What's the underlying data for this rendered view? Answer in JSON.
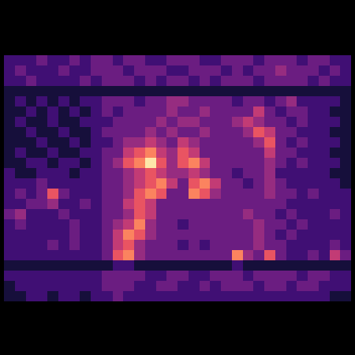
{
  "chart_data": {
    "type": "heatmap",
    "tick_labels": false,
    "cells": [
      [
        2,
        2,
        2,
        3,
        2,
        2,
        3,
        2,
        3,
        3,
        2,
        3,
        3,
        2,
        2,
        3,
        3,
        3,
        2,
        2,
        3,
        3,
        3,
        2,
        3,
        3,
        3,
        2,
        3,
        3,
        2,
        2
      ],
      [
        2,
        3,
        2,
        2,
        2,
        3,
        2,
        2,
        3,
        3,
        3,
        2,
        3,
        3,
        3,
        2,
        2,
        3,
        3,
        3,
        2,
        3,
        2,
        3,
        3,
        4,
        3,
        3,
        3,
        2,
        3,
        2
      ],
      [
        2,
        2,
        3,
        2,
        2,
        2,
        2,
        3,
        2,
        3,
        3,
        3,
        2,
        3,
        2,
        3,
        3,
        2,
        3,
        2,
        3,
        3,
        3,
        2,
        3,
        3,
        3,
        3,
        2,
        3,
        2,
        2
      ],
      [
        1,
        1,
        1,
        1,
        1,
        1,
        1,
        1,
        1,
        1,
        1,
        1,
        1,
        1,
        1,
        1,
        1,
        1,
        1,
        1,
        1,
        1,
        1,
        1,
        1,
        1,
        1,
        1,
        1,
        1,
        1,
        1
      ],
      [
        1,
        2,
        1,
        2,
        1,
        2,
        1,
        2,
        2,
        3,
        3,
        3,
        2,
        3,
        3,
        4,
        4,
        3,
        3,
        3,
        3,
        2,
        3,
        3,
        2,
        3,
        4,
        2,
        2,
        2,
        2,
        1
      ],
      [
        1,
        1,
        2,
        1,
        2,
        1,
        2,
        1,
        2,
        3,
        2,
        3,
        3,
        3,
        3,
        4,
        3,
        3,
        4,
        3,
        3,
        3,
        3,
        5,
        3,
        2,
        3,
        3,
        2,
        2,
        1,
        1
      ],
      [
        1,
        2,
        1,
        1,
        2,
        1,
        1,
        2,
        2,
        2,
        3,
        3,
        3,
        3,
        4,
        3,
        4,
        4,
        3,
        3,
        3,
        4,
        5,
        4,
        3,
        3,
        2,
        3,
        2,
        2,
        2,
        1
      ],
      [
        1,
        1,
        2,
        1,
        1,
        2,
        1,
        1,
        2,
        3,
        3,
        3,
        3,
        4,
        3,
        4,
        3,
        3,
        4,
        3,
        3,
        3,
        4,
        6,
        5,
        3,
        3,
        2,
        2,
        2,
        1,
        1
      ],
      [
        1,
        1,
        1,
        2,
        1,
        1,
        2,
        1,
        2,
        2,
        3,
        4,
        4,
        5,
        4,
        3,
        5,
        4,
        3,
        3,
        3,
        3,
        3,
        4,
        6,
        3,
        2,
        3,
        2,
        2,
        2,
        1
      ],
      [
        1,
        2,
        1,
        1,
        2,
        1,
        1,
        2,
        2,
        3,
        3,
        5,
        6,
        7,
        5,
        4,
        6,
        5,
        3,
        3,
        3,
        3,
        3,
        3,
        5,
        3,
        3,
        2,
        2,
        2,
        1,
        1
      ],
      [
        1,
        1,
        2,
        2,
        1,
        2,
        2,
        1,
        2,
        3,
        4,
        6,
        7,
        9,
        6,
        4,
        6,
        7,
        5,
        3,
        3,
        3,
        3,
        3,
        4,
        3,
        2,
        3,
        2,
        2,
        2,
        1
      ],
      [
        2,
        1,
        1,
        2,
        2,
        2,
        1,
        2,
        2,
        3,
        3,
        4,
        5,
        6,
        5,
        4,
        4,
        5,
        4,
        3,
        3,
        2,
        3,
        3,
        4,
        2,
        2,
        2,
        2,
        2,
        1,
        1
      ],
      [
        2,
        2,
        2,
        3,
        2,
        2,
        2,
        2,
        2,
        3,
        3,
        4,
        5,
        6,
        7,
        5,
        3,
        6,
        7,
        5,
        3,
        3,
        2,
        3,
        4,
        3,
        2,
        2,
        2,
        2,
        2,
        1
      ],
      [
        2,
        3,
        2,
        3,
        6,
        3,
        2,
        2,
        2,
        3,
        3,
        4,
        6,
        7,
        6,
        3,
        3,
        7,
        6,
        4,
        3,
        3,
        3,
        3,
        4,
        3,
        3,
        2,
        3,
        2,
        2,
        2
      ],
      [
        2,
        2,
        3,
        3,
        4,
        2,
        2,
        3,
        2,
        3,
        3,
        5,
        6,
        5,
        3,
        3,
        3,
        3,
        3,
        3,
        3,
        3,
        3,
        3,
        3,
        3,
        2,
        2,
        2,
        2,
        2,
        2
      ],
      [
        3,
        4,
        2,
        2,
        2,
        3,
        2,
        2,
        2,
        3,
        3,
        4,
        6,
        5,
        3,
        3,
        3,
        3,
        3,
        3,
        3,
        3,
        4,
        3,
        3,
        2,
        3,
        2,
        2,
        2,
        3,
        2
      ],
      [
        2,
        3,
        2,
        2,
        2,
        2,
        3,
        2,
        2,
        3,
        4,
        5,
        7,
        4,
        3,
        3,
        2,
        3,
        3,
        3,
        3,
        3,
        3,
        4,
        3,
        3,
        2,
        3,
        2,
        2,
        2,
        2
      ],
      [
        2,
        2,
        2,
        2,
        2,
        2,
        3,
        2,
        2,
        3,
        5,
        7,
        6,
        4,
        3,
        3,
        3,
        3,
        3,
        3,
        3,
        3,
        3,
        4,
        3,
        2,
        3,
        2,
        2,
        2,
        2,
        2
      ],
      [
        2,
        2,
        2,
        2,
        3,
        2,
        3,
        2,
        2,
        3,
        5,
        6,
        4,
        3,
        3,
        3,
        2,
        3,
        2,
        3,
        3,
        3,
        3,
        4,
        3,
        3,
        2,
        2,
        2,
        2,
        3,
        2
      ],
      [
        2,
        2,
        2,
        2,
        2,
        2,
        2,
        2,
        2,
        3,
        6,
        7,
        4,
        3,
        3,
        3,
        3,
        3,
        3,
        3,
        3,
        7,
        4,
        3,
        6,
        3,
        2,
        2,
        3,
        2,
        5,
        3
      ],
      [
        1,
        1,
        1,
        1,
        1,
        1,
        1,
        1,
        1,
        1,
        2,
        2,
        1,
        1,
        1,
        1,
        1,
        1,
        1,
        1,
        1,
        2,
        1,
        1,
        1,
        1,
        1,
        1,
        1,
        1,
        1,
        1
      ],
      [
        2,
        2,
        2,
        2,
        2,
        2,
        2,
        2,
        2,
        3,
        3,
        3,
        3,
        2,
        2,
        3,
        3,
        2,
        2,
        3,
        3,
        3,
        2,
        3,
        3,
        3,
        3,
        2,
        3,
        3,
        2,
        2
      ],
      [
        1,
        2,
        2,
        2,
        2,
        2,
        2,
        2,
        2,
        3,
        3,
        3,
        2,
        2,
        3,
        3,
        2,
        2,
        3,
        2,
        3,
        3,
        3,
        2,
        3,
        3,
        2,
        3,
        3,
        2,
        2,
        2
      ],
      [
        1,
        1,
        2,
        2,
        1,
        2,
        2,
        1,
        2,
        2,
        3,
        2,
        2,
        2,
        2,
        2,
        2,
        2,
        2,
        2,
        2,
        2,
        2,
        2,
        2,
        2,
        2,
        2,
        2,
        2,
        1,
        1
      ]
    ]
  }
}
